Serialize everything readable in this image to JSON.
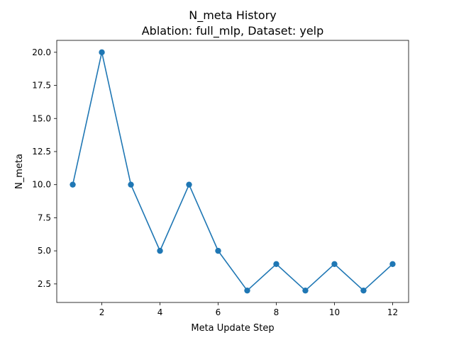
{
  "chart_data": {
    "type": "line",
    "title": "N_meta History",
    "subtitle": "Ablation: full_mlp, Dataset: yelp",
    "xlabel": "Meta Update Step",
    "ylabel": "N_meta",
    "x": [
      1,
      2,
      3,
      4,
      5,
      6,
      7,
      8,
      9,
      10,
      11,
      12
    ],
    "series": [
      {
        "values": [
          10,
          20,
          10,
          5,
          10,
          5,
          2,
          4,
          2,
          4,
          2,
          4
        ],
        "color": "#1f77b4",
        "marker": "circle"
      }
    ],
    "xlim": [
      0.45,
      12.55
    ],
    "ylim": [
      1.1,
      20.9
    ],
    "xticks": [
      2,
      4,
      6,
      8,
      10,
      12
    ],
    "yticks": [
      2.5,
      5.0,
      7.5,
      10.0,
      12.5,
      15.0,
      17.5,
      20.0
    ],
    "ytick_labels": [
      "2.5",
      "5.0",
      "7.5",
      "10.0",
      "12.5",
      "15.0",
      "17.5",
      "20.0"
    ],
    "grid": false,
    "legend": "none"
  }
}
